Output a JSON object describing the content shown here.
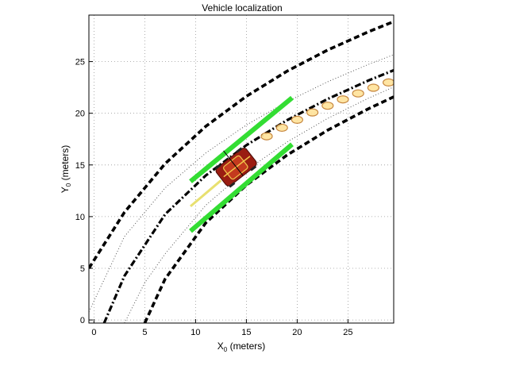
{
  "chart_data": {
    "type": "line",
    "title": "Vehicle localization",
    "xlabel": {
      "main": "X",
      "sub": "0",
      "suffix": " (meters)"
    },
    "ylabel": {
      "main": "Y",
      "sub": "0",
      "suffix": " (meters)"
    },
    "xlim": [
      -0.5,
      29.5
    ],
    "ylim": [
      -0.3,
      29.5
    ],
    "xticks": [
      0,
      5,
      10,
      15,
      20,
      25
    ],
    "yticks": [
      0,
      5,
      10,
      15,
      20,
      25
    ],
    "grid": true,
    "colors": {
      "boundary": "#000000",
      "centerline": "#000000",
      "guide": "#555555",
      "marker_fill": "#ffe39a",
      "marker_edge": "#c07a2a",
      "detection": "#33dd33",
      "vehicle_body": "#9a1d12",
      "vehicle_trim": "#f2c84b",
      "trail": "#e8e070"
    },
    "series": [
      {
        "style": "dashed-bold",
        "x": [
          -0.5,
          3,
          7,
          11,
          15,
          19,
          23,
          27,
          29.5
        ],
        "y": [
          5.0,
          10.42,
          15.12,
          18.73,
          21.64,
          24.07,
          26.12,
          27.88,
          28.87
        ]
      },
      {
        "style": "dotted-thin",
        "x": [
          -0.5,
          3,
          7,
          11,
          15,
          19,
          23,
          27,
          29.5
        ],
        "y": [
          0.78,
          8.07,
          12.77,
          16.15,
          18.86,
          21.12,
          23.05,
          24.72,
          25.67
        ]
      },
      {
        "style": "dash-dot-bold",
        "x": [
          1.0,
          3,
          7,
          11,
          15,
          19,
          23,
          27,
          29.5
        ],
        "y": [
          -0.3,
          4.26,
          10.22,
          13.98,
          16.91,
          19.33,
          21.38,
          23.16,
          24.16
        ]
      },
      {
        "style": "dotted-thin",
        "x": [
          3.0,
          5,
          7,
          11,
          15,
          19,
          23,
          27,
          29.5
        ],
        "y": [
          -0.3,
          3.61,
          6.4,
          11.1,
          14.49,
          17.22,
          19.5,
          21.45,
          22.54
        ]
      },
      {
        "style": "dashed-bold",
        "x": [
          5.0,
          7,
          11,
          15,
          19,
          23,
          27,
          29.5
        ],
        "y": [
          -0.3,
          3.96,
          9.39,
          13.05,
          15.95,
          18.36,
          20.43,
          21.59
        ]
      }
    ],
    "markers": {
      "x": [
        17.0,
        18.5,
        20.0,
        21.5,
        23.0,
        24.5,
        26.0,
        27.5,
        29.0
      ],
      "y": [
        17.77,
        18.6,
        19.37,
        20.08,
        20.73,
        21.34,
        21.92,
        22.47,
        22.98
      ]
    },
    "detections": [
      {
        "x": [
          9.5,
          19.5
        ],
        "y": [
          13.4,
          21.5
        ]
      },
      {
        "x": [
          9.5,
          19.5
        ],
        "y": [
          8.6,
          17.0
        ]
      }
    ],
    "trail": {
      "x": [
        9.5,
        12.5
      ],
      "y": [
        11.0,
        13.5
      ]
    },
    "vehicle": {
      "x": 14.0,
      "y": 14.8,
      "heading_deg": 38
    }
  }
}
